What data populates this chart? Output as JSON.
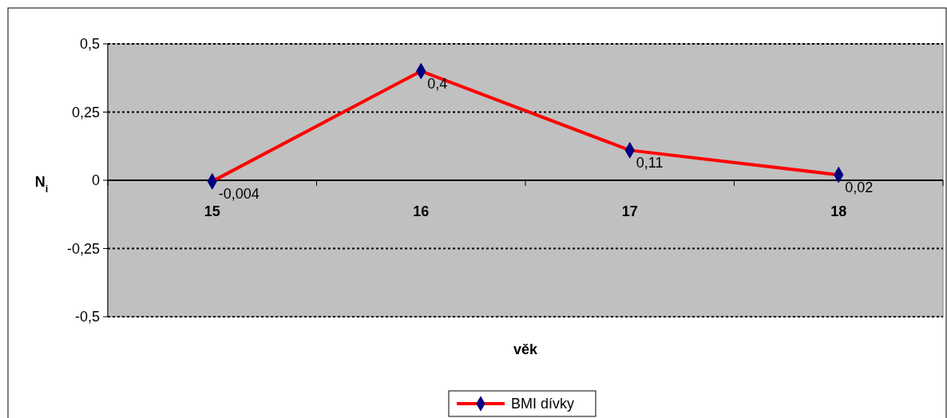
{
  "chart_data": {
    "type": "line",
    "xlabel": "věk",
    "ylabel": "N$_{i}$",
    "categories": [
      "15",
      "16",
      "17",
      "18"
    ],
    "series": [
      {
        "name": "BMI dívky",
        "color": "#ff0000",
        "values": [
          -0.004,
          0.4,
          0.11,
          0.02
        ],
        "value_labels": [
          "-0,004",
          "0,4",
          "0,11",
          "0,02"
        ]
      }
    ],
    "ylim": [
      -0.5,
      0.5
    ],
    "yticks": [
      {
        "value": -0.5,
        "label": "-0,5"
      },
      {
        "value": -0.25,
        "label": "-0,25"
      },
      0,
      {
        "value": 0.25,
        "label": "0,25"
      },
      {
        "value": 0.5,
        "label": "0,5"
      }
    ],
    "grid": "y",
    "legend": "bottom",
    "marker": "diamond",
    "line_style": "solid"
  }
}
